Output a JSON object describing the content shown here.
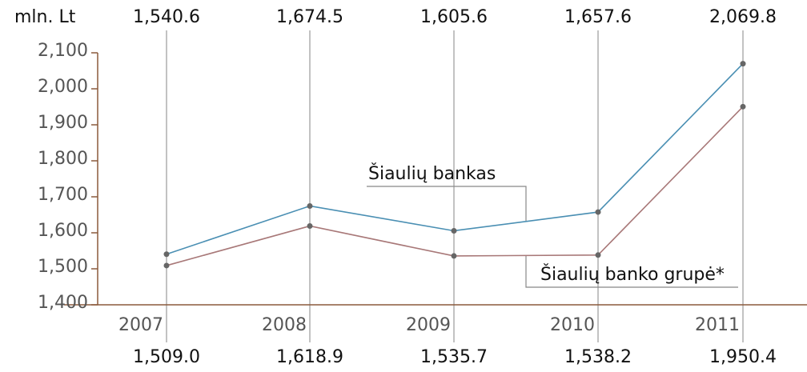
{
  "chart_data": {
    "type": "line",
    "y_label": "mln. Lt",
    "categories": [
      "2007",
      "2008",
      "2009",
      "2010",
      "2011"
    ],
    "series": [
      {
        "name": "Šiaulių bankas",
        "color": "#4a8fb3",
        "values": [
          1540.6,
          1674.5,
          1605.6,
          1657.6,
          2069.8
        ],
        "value_labels": [
          "1,540.6",
          "1,674.5",
          "1,605.6",
          "1,657.6",
          "2,069.8"
        ]
      },
      {
        "name": "Šiaulių banko grupė*",
        "color": "#a87878",
        "values": [
          1509.0,
          1618.9,
          1535.7,
          1538.2,
          1950.4
        ],
        "value_labels": [
          "1,509.0",
          "1,618.9",
          "1,535.7",
          "1,538.2",
          "1,950.4"
        ]
      }
    ],
    "marker_color": "#666666",
    "axis_color": "#8b5a3c",
    "ylim": [
      1400,
      2100
    ],
    "yticks": [
      {
        "value": 1400,
        "label": "1,400"
      },
      {
        "value": 1500,
        "label": "1,500"
      },
      {
        "value": 1600,
        "label": "1,600"
      },
      {
        "value": 1700,
        "label": "1,700"
      },
      {
        "value": 1800,
        "label": "1,800"
      },
      {
        "value": 1900,
        "label": "1,900"
      },
      {
        "value": 2000,
        "label": "2,000"
      },
      {
        "value": 2100,
        "label": "2,100"
      }
    ]
  }
}
